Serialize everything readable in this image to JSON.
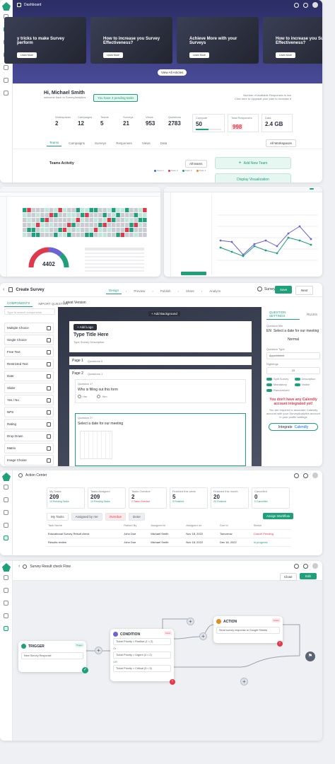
{
  "dashboard": {
    "title": "Dashboard",
    "hero_cards": [
      {
        "text": "y tricks to make Survey perform",
        "cta": "Learn More"
      },
      {
        "text": "How to increase you Survey Effectiveness?",
        "cta": "Learn More"
      },
      {
        "text": "Achieve More with your Surveys",
        "cta": "Learn More"
      },
      {
        "text": "How to increase you Survey Effectiveness?",
        "cta": "Learn More"
      }
    ],
    "view_all": "View All Articles",
    "greeting": "Hi, Michael Smith",
    "subtitle": "welcome back to SurveyAnalytics",
    "pending_tasks": "You have 3 pending tasks",
    "responses_left": "Number of available Responses is low",
    "upgrade": "Click here to Upgrade your plan to increase it",
    "stats": [
      {
        "label": "Workspaces",
        "value": "2"
      },
      {
        "label": "Campaigns",
        "value": "12"
      },
      {
        "label": "Teams",
        "value": "5"
      },
      {
        "label": "Surveys",
        "value": "21"
      },
      {
        "label": "Views",
        "value": "953"
      },
      {
        "label": "Questions",
        "value": "2783"
      }
    ],
    "compute": {
      "label": "Compute",
      "value": "50"
    },
    "responses": {
      "label": "Total Responses",
      "value": "998"
    },
    "data": {
      "label": "Data",
      "value": "2.4 GB"
    },
    "tabs": [
      "Teams",
      "Campaigns",
      "Surveys",
      "Responses",
      "Views",
      "Data"
    ],
    "workspace_filter": "All Workspaces",
    "teams_activity": "Teams Activity",
    "all_teams": "All teams",
    "legend": [
      "Team 1",
      "Team 2",
      "Team 3",
      "Team 4"
    ],
    "add_team": "Add New Team",
    "display_vis": "Display Visualization"
  },
  "analytics": {
    "gauge_value": "4402"
  },
  "create_survey": {
    "title": "Create Survey",
    "steps": [
      "Design",
      "Preview",
      "Publish",
      "Share",
      "Analyze"
    ],
    "help": "Survey Help",
    "save": "Save",
    "next": "Next",
    "panel_tabs": [
      "COMPONENTS",
      "IMPORT QUESTION"
    ],
    "version": "Latest Version",
    "search_placeholder": "Type to search components",
    "components": [
      "Multiple Choice",
      "Single Choice",
      "Free Text",
      "Restricted Text",
      "Date",
      "Slider",
      "Yes / No",
      "NPS",
      "Rating",
      "Drop Down",
      "Matrix",
      "Image Choise"
    ],
    "add_background": "+ Add Background",
    "add_logo": "+ Add Logo",
    "survey_title": "Type Title Here",
    "survey_desc": "Type Survey Description",
    "page1": "Page 1",
    "page1_q": "Questions 0",
    "page2": "Page 2",
    "page2_q": "Questions 1",
    "q1_label": "Question 1*",
    "q1_text": "Who is filling out this form",
    "q1_options": [
      "Her",
      "Him"
    ],
    "q2_label": "Question 2*",
    "q2_text": "Select a date for our meeting",
    "settings_tabs": [
      "QUESTION SETTINGS",
      "RULES"
    ],
    "question_title": "Question title",
    "lang": "EN",
    "title_value": "Select a date for our meeting",
    "font_style": "Normal",
    "question_type": "Question Type",
    "type_value": "Appointment",
    "nightings": "Nightings",
    "nightings_value": "10",
    "toggles": [
      "Split Survey",
      "Description",
      "Mandatory",
      "Visible",
      "Randomized"
    ],
    "calendly_warning": "You don't have any Calendly account integrated yet!",
    "calendly_info": "You are required to associate Calendly account with your SurveyAnalytics account in your profile settings",
    "integrate": "Integrate",
    "calendly": "Calendly"
  },
  "action_center": {
    "title": "Action Center",
    "stats": [
      {
        "label": "My Tasks",
        "value": "209",
        "sub": "10 Pending Tasks",
        "color": "#1ea07a"
      },
      {
        "label": "Tasks Assigned",
        "value": "209",
        "sub": "10 Pending Tasks",
        "color": "#1ea07a"
      },
      {
        "label": "Tasks Overdue",
        "value": "2",
        "sub": "2 Tasks Overdue",
        "color": "#e0394b"
      },
      {
        "label": "Finished this week",
        "value": "5",
        "sub": "5 Finished",
        "color": "#1ea07a"
      },
      {
        "label": "Finished this month",
        "value": "20",
        "sub": "20 Finished",
        "color": "#1ea07a"
      },
      {
        "label": "Cancelled",
        "value": "0",
        "sub": "0 Cancelled",
        "color": "#1ea07a"
      }
    ],
    "tabs": [
      "My Tasks",
      "Assigned by me",
      "Overdue",
      "Done"
    ],
    "assign": "Assign Workflow",
    "columns": [
      "Task Name",
      "Raised By",
      "Assigned to",
      "Assigned on",
      "Due to",
      "Status"
    ],
    "rows": [
      {
        "task": "Educational Survey Result check",
        "raised": "John Doe",
        "assigned": "Michael Smith",
        "on": "Nov 18, 2022",
        "due": "Tomorrow",
        "status": "Cancel Pending",
        "status_color": "#e0394b"
      },
      {
        "task": "Results review",
        "raised": "John Doe",
        "assigned": "Michael Smith",
        "on": "Nov 18, 2022",
        "due": "Dec 18, 2022",
        "status": "In progress",
        "status_color": "#1ea07a"
      }
    ]
  },
  "flow": {
    "title": "Survey Result check Flow",
    "close": "Close",
    "edit": "Edit",
    "trigger": "TRIGGER",
    "trigger_badge": "Trigger",
    "trigger_item": "New Survey Response",
    "condition": "CONDITION",
    "condition_badge": "Cond",
    "cond_items": [
      "Ticket Priority > Routine (1 < 2)",
      "Ticket Priority > Urgent (3 > 2)",
      "Ticket Priority > Critical (3 < 5)"
    ],
    "or1": "Or",
    "or2": "OR",
    "action": "ACTION",
    "action_badge": "Action",
    "action_item": "Send survey response to Google Sheets"
  }
}
